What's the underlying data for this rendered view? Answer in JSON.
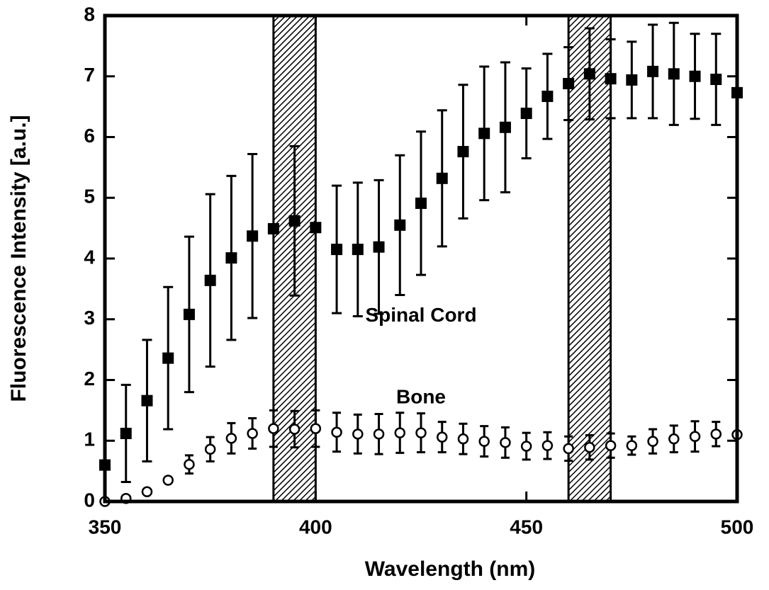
{
  "chart_data": {
    "type": "errorbar",
    "xlabel": "Wavelength   (nm)",
    "ylabel": "Fluorescence  Intensity  [a.u.]",
    "xlim": [
      350,
      500
    ],
    "ylim": [
      0,
      8
    ],
    "xticks": [
      350,
      400,
      450,
      500
    ],
    "yticks": [
      0,
      1,
      2,
      3,
      4,
      5,
      6,
      7,
      8
    ],
    "bands": [
      [
        390,
        400
      ],
      [
        460,
        470
      ]
    ],
    "annotations": [
      {
        "text": "Spinal  Cord",
        "x": 425,
        "y": 3.05
      },
      {
        "text": "Bone",
        "x": 425,
        "y": 1.7
      }
    ],
    "x": [
      350,
      355,
      360,
      365,
      370,
      375,
      380,
      385,
      390,
      395,
      400,
      405,
      410,
      415,
      420,
      425,
      430,
      435,
      440,
      445,
      450,
      455,
      460,
      465,
      470,
      475,
      480,
      485,
      490,
      495,
      500
    ],
    "series": [
      {
        "marker": "square",
        "color": "#000000",
        "values": [
          0.6,
          1.12,
          1.66,
          2.36,
          3.08,
          3.64,
          4.01,
          4.37,
          4.49,
          4.62,
          4.51,
          4.15,
          4.15,
          4.19,
          4.55,
          4.91,
          5.32,
          5.76,
          6.06,
          6.16,
          6.39,
          6.67,
          6.88,
          7.04,
          6.96,
          6.94,
          7.08,
          7.04,
          7.0,
          6.95,
          6.73
        ],
        "errors": [
          null,
          0.8,
          1.0,
          1.17,
          1.28,
          1.42,
          1.35,
          1.35,
          null,
          1.23,
          null,
          1.05,
          1.1,
          1.1,
          1.15,
          1.18,
          1.12,
          1.1,
          1.1,
          1.07,
          0.74,
          0.7,
          0.6,
          0.75,
          0.65,
          0.63,
          0.77,
          0.84,
          0.7,
          0.75,
          null
        ]
      },
      {
        "marker": "circle",
        "color": "#000000",
        "values": [
          0.0,
          0.05,
          0.16,
          0.35,
          0.61,
          0.86,
          1.04,
          1.12,
          1.2,
          1.19,
          1.2,
          1.14,
          1.11,
          1.11,
          1.13,
          1.13,
          1.06,
          1.03,
          0.99,
          0.97,
          0.91,
          0.92,
          0.87,
          0.89,
          0.92,
          0.92,
          0.99,
          1.03,
          1.07,
          1.11,
          1.1
        ],
        "errors": [
          null,
          null,
          null,
          null,
          0.15,
          0.2,
          0.25,
          0.25,
          0.3,
          0.3,
          0.3,
          0.32,
          0.32,
          0.33,
          0.33,
          0.32,
          0.25,
          0.25,
          0.25,
          0.25,
          0.22,
          0.22,
          0.2,
          0.2,
          0.2,
          0.15,
          0.2,
          0.22,
          0.25,
          0.2,
          null
        ]
      }
    ]
  }
}
